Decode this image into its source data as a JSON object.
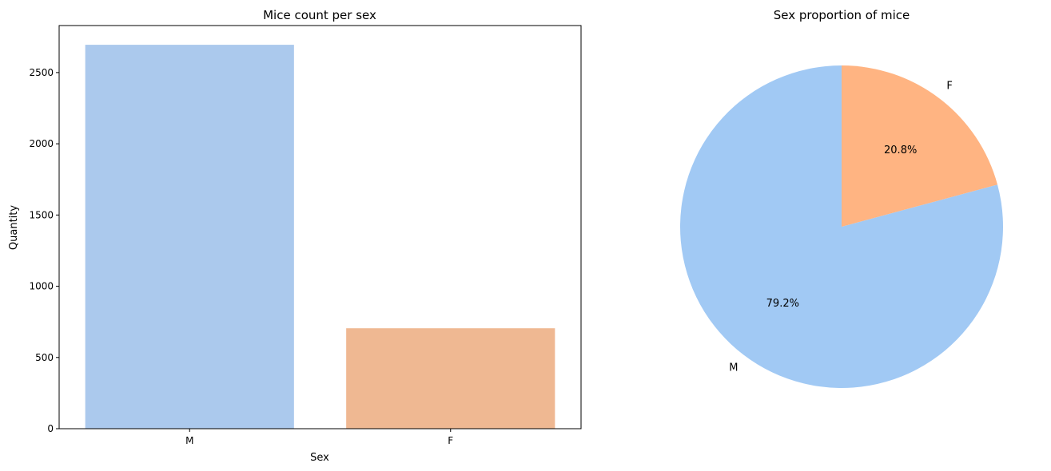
{
  "chart_data": [
    {
      "type": "bar",
      "title": "Mice count per sex",
      "xlabel": "Sex",
      "ylabel": "Quantity",
      "categories": [
        "M",
        "F"
      ],
      "values": [
        2695,
        705
      ],
      "colors": [
        "#abc9ed",
        "#efb892"
      ],
      "ylim": [
        0,
        2830
      ],
      "yticks": [
        0,
        500,
        1000,
        1500,
        2000,
        2500
      ],
      "ytick_labels": [
        "0",
        "500",
        "1000",
        "1500",
        "2000",
        "2500"
      ],
      "grid": false,
      "legend": "none"
    },
    {
      "type": "pie",
      "title": "Sex proportion of mice",
      "labels": [
        "M",
        "F"
      ],
      "values": [
        79.2,
        20.8
      ],
      "pct_labels": [
        "79.2%",
        "20.8%"
      ],
      "colors": [
        "#a1c9f4",
        "#ffb482"
      ],
      "start_angle_deg": 90,
      "direction": "counterclockwise",
      "legend": "none"
    }
  ]
}
